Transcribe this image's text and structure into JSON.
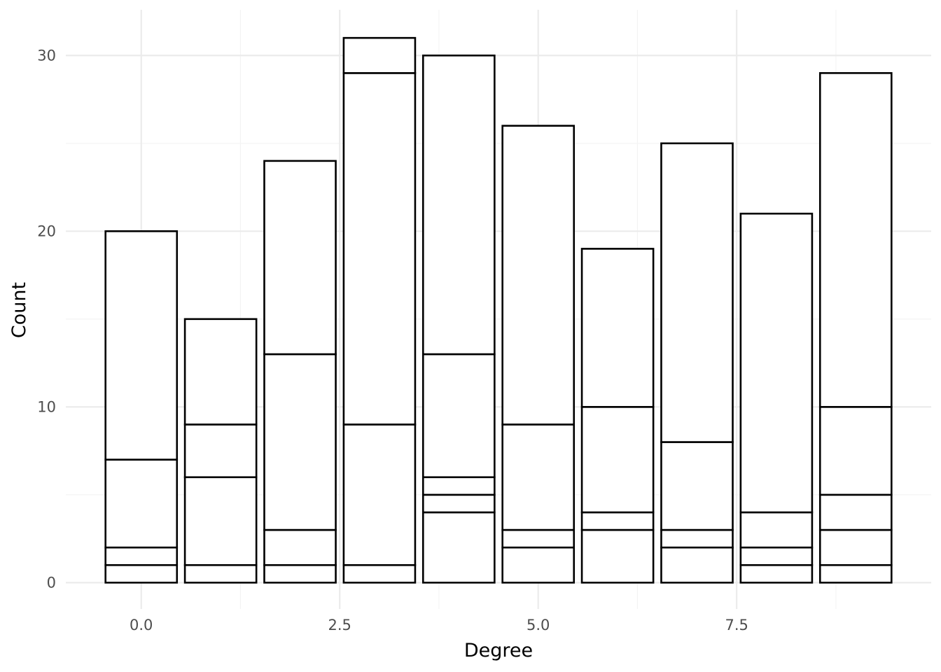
{
  "chart_data": {
    "type": "bar",
    "stacked": true,
    "title": "",
    "xlabel": "Degree",
    "ylabel": "Count",
    "x_ticks": [
      "0.0",
      "2.5",
      "5.0",
      "7.5"
    ],
    "x_tick_values": [
      0,
      2.5,
      5,
      7.5
    ],
    "y_ticks": [
      "0",
      "10",
      "20",
      "30"
    ],
    "y_tick_values": [
      0,
      10,
      20,
      30
    ],
    "xlim": [
      -0.95,
      9.95
    ],
    "ylim": [
      -1.5,
      32.6
    ],
    "grid": true,
    "legend": "none",
    "fill_color": "#ffffff",
    "outline_color": "#000000",
    "bars": [
      {
        "x": 0,
        "total": 20,
        "boundaries": [
          0,
          1,
          2,
          7,
          20
        ]
      },
      {
        "x": 1,
        "total": 15,
        "boundaries": [
          0,
          1,
          6,
          9,
          15
        ]
      },
      {
        "x": 2,
        "total": 24,
        "boundaries": [
          0,
          1,
          3,
          13,
          24
        ]
      },
      {
        "x": 3,
        "total": 31,
        "boundaries": [
          0,
          1,
          9,
          29,
          31
        ]
      },
      {
        "x": 4,
        "total": 30,
        "boundaries": [
          0,
          4,
          5,
          6,
          13,
          30
        ]
      },
      {
        "x": 5,
        "total": 26,
        "boundaries": [
          0,
          2,
          3,
          9,
          26
        ]
      },
      {
        "x": 6,
        "total": 19,
        "boundaries": [
          0,
          3,
          4,
          10,
          19
        ]
      },
      {
        "x": 7,
        "total": 25,
        "boundaries": [
          0,
          2,
          3,
          8,
          25
        ]
      },
      {
        "x": 8,
        "total": 21,
        "boundaries": [
          0,
          1,
          2,
          4,
          21
        ]
      },
      {
        "x": 9,
        "total": 29,
        "boundaries": [
          0,
          1,
          3,
          5,
          10,
          29
        ]
      }
    ]
  }
}
